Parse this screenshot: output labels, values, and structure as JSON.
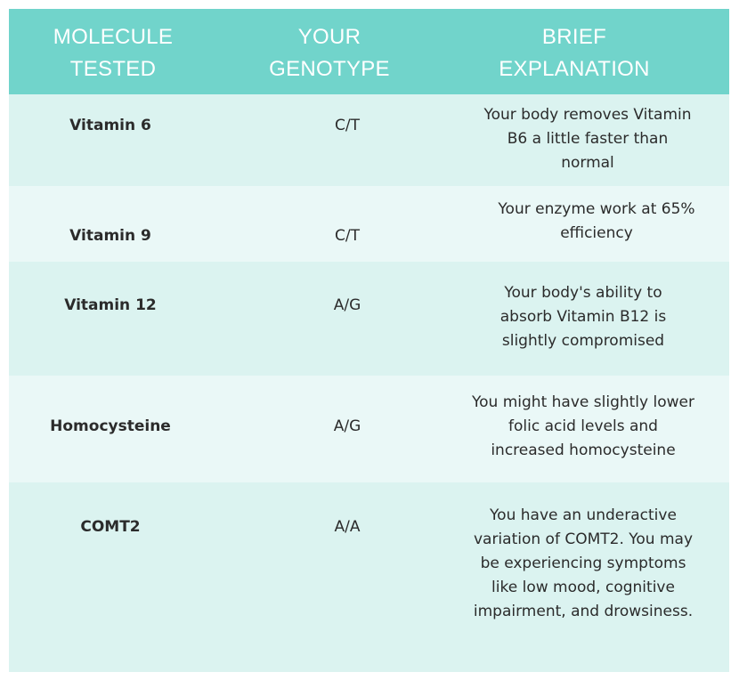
{
  "header": {
    "molecule_tested": "MOLECULE\nTESTED",
    "your_genotype": "YOUR\nGENOTYPE",
    "brief_explanation": "BRIEF\nEXPLANATION"
  },
  "rows": [
    {
      "molecule": "Vitamin 6",
      "genotype": "C/T",
      "explanation": "Your body removes Vitamin B6 a little faster than normal"
    },
    {
      "molecule": "Vitamin 9",
      "genotype": "C/T",
      "explanation": "Your enzyme work at 65% efficiency"
    },
    {
      "molecule": "Vitamin 12",
      "genotype": "A/G",
      "explanation": "Your body's ability to absorb Vitamin B12 is slightly compromised"
    },
    {
      "molecule": "Homocysteine",
      "genotype": "A/G",
      "explanation": "You might have slightly lower folic acid levels and increased homocysteine"
    },
    {
      "molecule": "COMT2",
      "genotype": "A/A",
      "explanation": "You have an underactive variation of COMT2. You may be experiencing symptoms like low mood, cognitive impairment, and drowsiness."
    }
  ]
}
